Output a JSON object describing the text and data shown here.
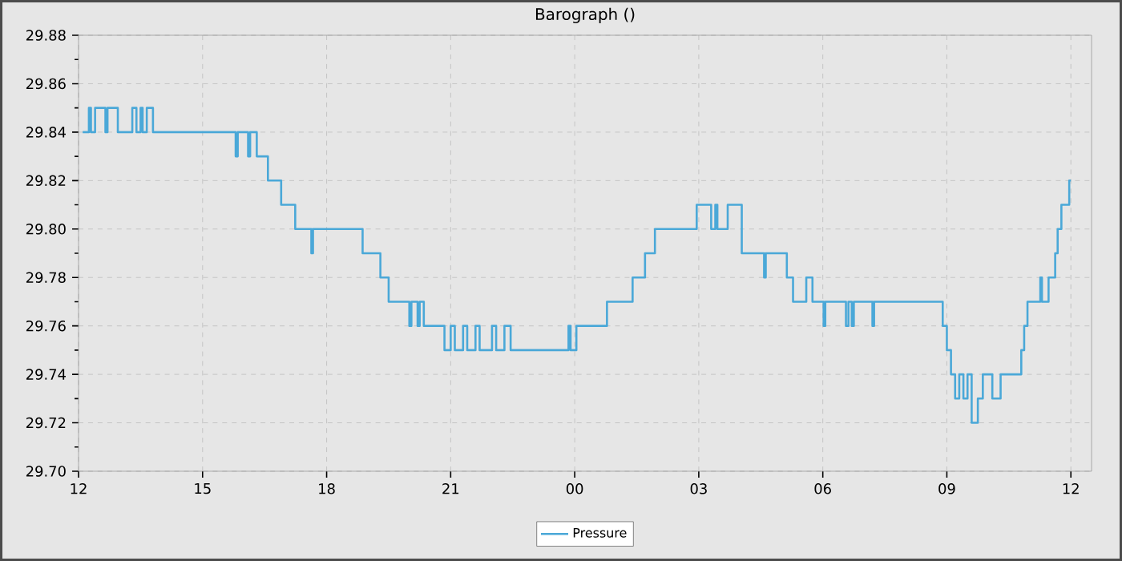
{
  "chart_data": {
    "type": "step",
    "title": "Barograph ()",
    "xlim": [
      12,
      36.5
    ],
    "xticks": [
      {
        "value": 12,
        "label": "12"
      },
      {
        "value": 15,
        "label": "15"
      },
      {
        "value": 18,
        "label": "18"
      },
      {
        "value": 21,
        "label": "21"
      },
      {
        "value": 24,
        "label": "00"
      },
      {
        "value": 27,
        "label": "03"
      },
      {
        "value": 30,
        "label": "06"
      },
      {
        "value": 33,
        "label": "09"
      },
      {
        "value": 36,
        "label": "12"
      }
    ],
    "ylim": [
      29.7,
      29.88
    ],
    "yticks": [
      {
        "value": 29.7,
        "label": "29.70"
      },
      {
        "value": 29.72,
        "label": "29.72"
      },
      {
        "value": 29.74,
        "label": "29.74"
      },
      {
        "value": 29.76,
        "label": "29.76"
      },
      {
        "value": 29.78,
        "label": "29.78"
      },
      {
        "value": 29.8,
        "label": "29.80"
      },
      {
        "value": 29.82,
        "label": "29.82"
      },
      {
        "value": 29.84,
        "label": "29.84"
      },
      {
        "value": 29.86,
        "label": "29.86"
      },
      {
        "value": 29.88,
        "label": "29.88"
      }
    ],
    "grid": true,
    "legend": "bottom",
    "marker": "none",
    "line_style": "solid",
    "series": [
      {
        "name": "Pressure",
        "color": "#4aa8d8",
        "x": [
          12.1,
          12.25,
          12.3,
          12.4,
          12.65,
          12.7,
          12.95,
          13.3,
          13.4,
          13.5,
          13.55,
          13.65,
          13.8,
          15.8,
          15.85,
          16.1,
          16.15,
          16.31,
          16.58,
          16.9,
          17.24,
          17.63,
          17.67,
          18.87,
          19.3,
          19.5,
          20.0,
          20.05,
          20.2,
          20.25,
          20.35,
          20.85,
          21.0,
          21.1,
          21.3,
          21.4,
          21.6,
          21.7,
          22.0,
          22.1,
          22.3,
          22.45,
          23.85,
          23.9,
          24.04,
          24.78,
          25.4,
          25.7,
          25.94,
          26.95,
          27.3,
          27.4,
          27.45,
          27.7,
          28.04,
          28.58,
          28.62,
          29.13,
          29.28,
          29.6,
          29.75,
          30.02,
          30.06,
          30.56,
          30.62,
          30.7,
          30.75,
          31.2,
          31.24,
          32.9,
          33.0,
          33.1,
          33.2,
          33.3,
          33.4,
          33.5,
          33.6,
          33.75,
          33.87,
          34.1,
          34.3,
          34.45,
          34.8,
          34.87,
          34.95,
          35.26,
          35.3,
          35.46,
          35.62,
          35.68,
          35.77,
          35.96,
          36.0
        ],
        "values": [
          29.84,
          29.85,
          29.84,
          29.85,
          29.84,
          29.85,
          29.84,
          29.85,
          29.84,
          29.85,
          29.84,
          29.85,
          29.84,
          29.83,
          29.84,
          29.83,
          29.84,
          29.83,
          29.82,
          29.81,
          29.8,
          29.79,
          29.8,
          29.79,
          29.78,
          29.77,
          29.76,
          29.77,
          29.76,
          29.77,
          29.76,
          29.75,
          29.76,
          29.75,
          29.76,
          29.75,
          29.76,
          29.75,
          29.76,
          29.75,
          29.76,
          29.75,
          29.76,
          29.75,
          29.76,
          29.77,
          29.78,
          29.79,
          29.8,
          29.81,
          29.8,
          29.81,
          29.8,
          29.81,
          29.79,
          29.78,
          29.79,
          29.78,
          29.77,
          29.78,
          29.77,
          29.76,
          29.77,
          29.76,
          29.77,
          29.76,
          29.77,
          29.76,
          29.77,
          29.76,
          29.75,
          29.74,
          29.73,
          29.74,
          29.73,
          29.74,
          29.72,
          29.73,
          29.74,
          29.73,
          29.74,
          29.74,
          29.75,
          29.76,
          29.77,
          29.78,
          29.77,
          29.78,
          29.79,
          29.8,
          29.81,
          29.82,
          29.82
        ]
      }
    ]
  }
}
